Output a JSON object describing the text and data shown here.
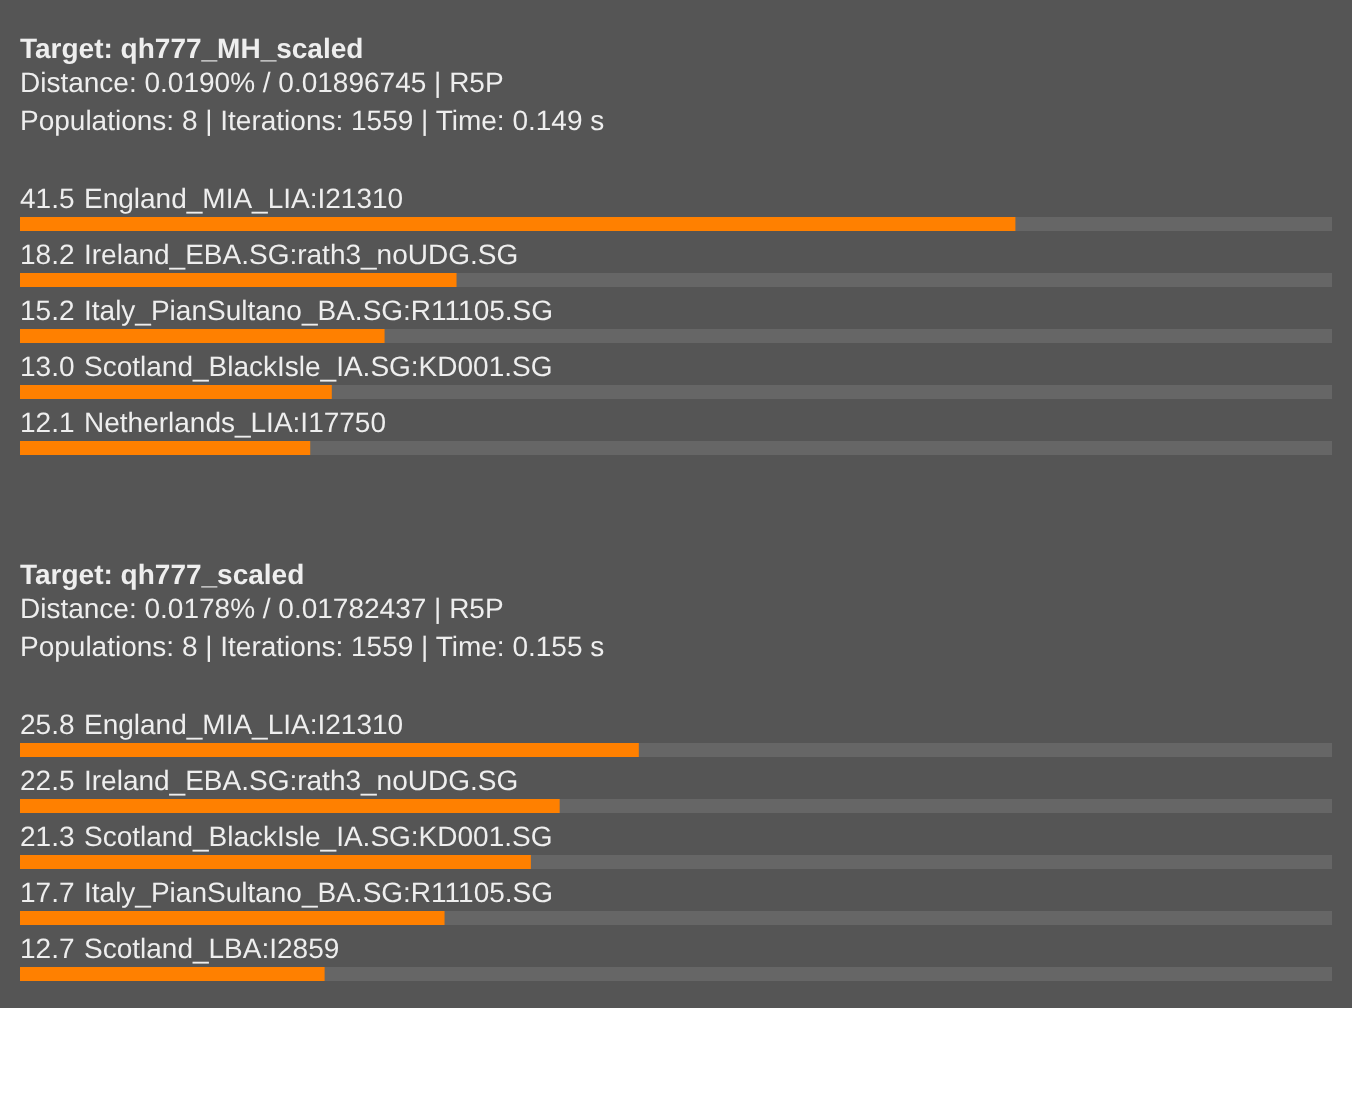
{
  "chart_data": [
    {
      "type": "bar",
      "orientation": "horizontal",
      "title": "Target: qh777_MH_scaled",
      "subtitle": "Distance: 0.0190% / 0.01896745 | R5P",
      "annotations": [
        "Populations: 8 | Iterations: 1559 | Time: 0.149 s"
      ],
      "categories": [
        "England_MIA_LIA:I21310",
        "Ireland_EBA.SG:rath3_noUDG.SG",
        "Italy_PianSultano_BA.SG:R11105.SG",
        "Scotland_BlackIsle_IA.SG:KD001.SG",
        "Netherlands_LIA:I17750"
      ],
      "values": [
        41.5,
        18.2,
        15.2,
        13.0,
        12.1
      ],
      "value_labels": [
        "41.5",
        "18.2",
        "15.2",
        "13.0",
        "12.1"
      ],
      "color": "#ff8000",
      "xlim": [
        0,
        54.7
      ],
      "tick_labels": false
    },
    {
      "type": "bar",
      "orientation": "horizontal",
      "title": "Target: qh777_scaled",
      "subtitle": "Distance: 0.0178% / 0.01782437 | R5P",
      "annotations": [
        "Populations: 8 | Iterations: 1559 | Time: 0.155 s"
      ],
      "categories": [
        "England_MIA_LIA:I21310",
        "Ireland_EBA.SG:rath3_noUDG.SG",
        "Scotland_BlackIsle_IA.SG:KD001.SG",
        "Italy_PianSultano_BA.SG:R11105.SG",
        "Scotland_LBA:I2859"
      ],
      "values": [
        25.8,
        22.5,
        21.3,
        17.7,
        12.7
      ],
      "value_labels": [
        "25.8",
        "22.5",
        "21.3",
        "17.7",
        "12.7"
      ],
      "color": "#ff8000",
      "xlim": [
        0,
        54.7
      ],
      "tick_labels": false
    }
  ]
}
